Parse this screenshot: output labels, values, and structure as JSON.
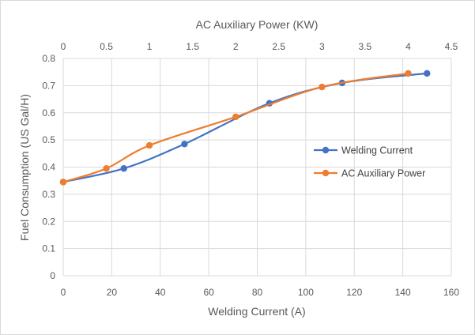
{
  "chart_data": {
    "type": "line",
    "xlabel": "Welding Current (A)",
    "ylabel": "Fuel Consumption (US Gal/H)",
    "x2label": "AC Auxiliary Power (KW)",
    "xlim": [
      0,
      160
    ],
    "x2lim": [
      0,
      4.5
    ],
    "ylim": [
      0,
      0.8
    ],
    "x_ticks": [
      0,
      20,
      40,
      60,
      80,
      100,
      120,
      140,
      160
    ],
    "x2_ticks": [
      0,
      0.5,
      1,
      1.5,
      2,
      2.5,
      3,
      3.5,
      4,
      4.5
    ],
    "y_ticks": [
      0,
      0.1,
      0.2,
      0.3,
      0.4,
      0.5,
      0.6,
      0.7,
      0.8
    ],
    "grid": "vertical and horizontal",
    "legend_position": "right",
    "series": [
      {
        "name": "Welding Current",
        "axis": "bottom",
        "color": "#4472c4",
        "x": [
          0,
          25,
          50,
          85,
          115,
          150
        ],
        "y": [
          0.345,
          0.395,
          0.485,
          0.635,
          0.71,
          0.745
        ]
      },
      {
        "name": "AC Auxiliary Power",
        "axis": "top",
        "color": "#ed7d31",
        "x": [
          0,
          0.5,
          1.0,
          2.0,
          3.0,
          4.0
        ],
        "y": [
          0.345,
          0.395,
          0.48,
          0.585,
          0.695,
          0.745
        ]
      }
    ]
  }
}
